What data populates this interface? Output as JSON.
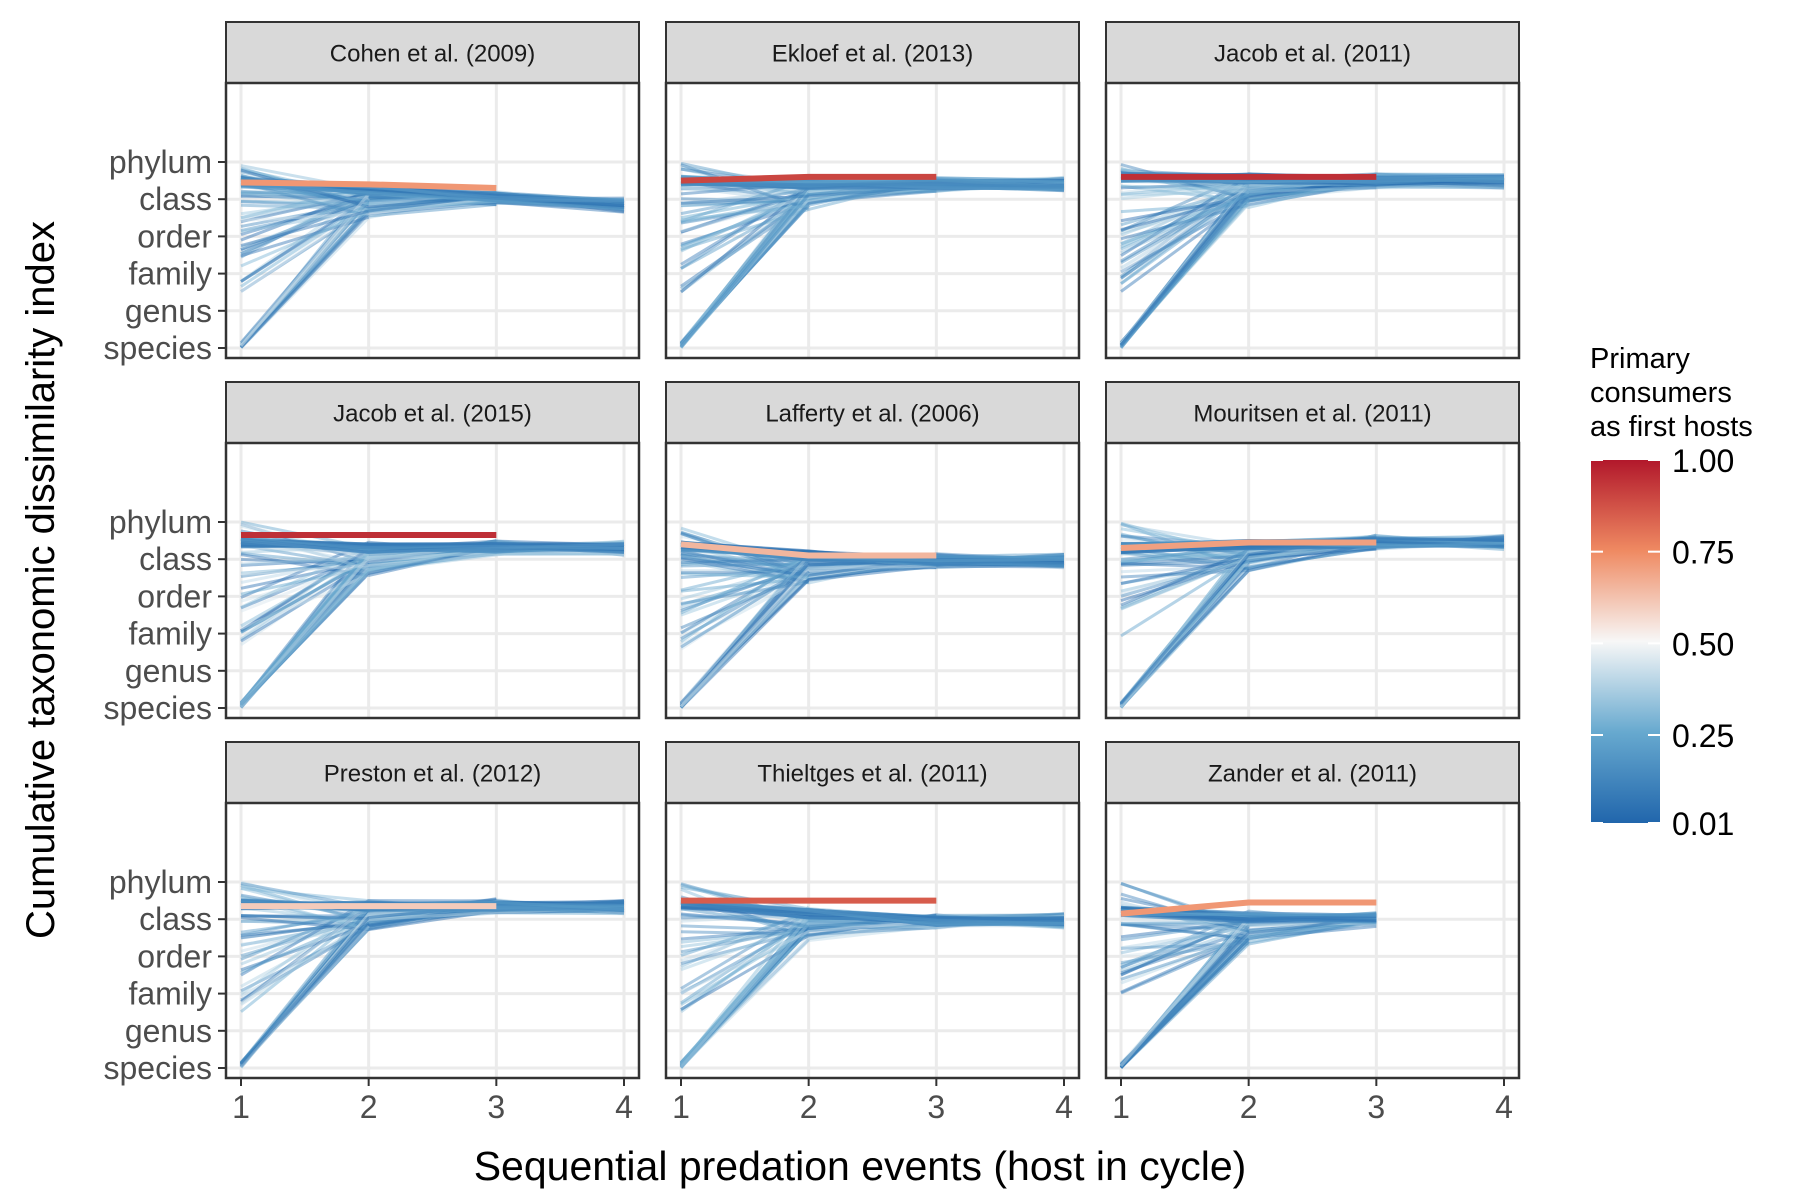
{
  "chart_data": {
    "type": "line",
    "layout": "facet-grid-3x3",
    "xlabel": "Sequential predation events (host in cycle)",
    "ylabel": "Cumulative taxonomic dissimilarity index",
    "x_ticks": [
      "1",
      "2",
      "3",
      "4"
    ],
    "xlim": [
      1,
      4
    ],
    "y_levels": [
      "species",
      "genus",
      "family",
      "order",
      "class",
      "phylum"
    ],
    "ylim": [
      1,
      6
    ],
    "grid": true,
    "legend": {
      "title_lines": [
        "Primary",
        "consumers",
        "as first hosts"
      ],
      "labels": [
        "1.00",
        "0.75",
        "0.50",
        "0.25",
        "0.01"
      ],
      "values": [
        1.0,
        0.75,
        0.5,
        0.25,
        0.01
      ],
      "colors": [
        "#b2182b",
        "#ef8a62",
        "#f7f7f7",
        "#67a9cf",
        "#2166ac"
      ],
      "placement": "right"
    },
    "facets": [
      {
        "title": "Cohen et al. (2009)",
        "n_hosts": 4,
        "steady": [
          5.45,
          5.25,
          5.05,
          4.85
        ],
        "red": [
          5.45,
          5.4,
          5.3
        ],
        "red_share": 0.72
      },
      {
        "title": "Ekloef et al. (2013)",
        "n_hosts": 4,
        "steady": [
          5.5,
          5.4,
          5.4,
          5.4
        ],
        "red": [
          5.5,
          5.6,
          5.6
        ],
        "red_share": 0.9
      },
      {
        "title": "Jacob et al. (2011)",
        "n_hosts": 4,
        "steady": [
          5.6,
          5.55,
          5.5,
          5.5
        ],
        "red": [
          5.6,
          5.6,
          5.6
        ],
        "red_share": 0.95
      },
      {
        "title": "Jacob et al. (2015)",
        "n_hosts": 4,
        "steady": [
          5.45,
          5.3,
          5.3,
          5.3
        ],
        "red": [
          5.65,
          5.65,
          5.65
        ],
        "red_share": 0.95
      },
      {
        "title": "Lafferty et al. (2006)",
        "n_hosts": 4,
        "steady": [
          5.35,
          5.1,
          4.95,
          4.95
        ],
        "red": [
          5.4,
          5.1,
          5.1
        ],
        "red_share": 0.65
      },
      {
        "title": "Mouritsen et al. (2011)",
        "n_hosts": 4,
        "steady": [
          5.3,
          5.4,
          5.45,
          5.45
        ],
        "red": [
          5.3,
          5.45,
          5.45
        ],
        "red_share": 0.7
      },
      {
        "title": "Preston et al. (2012)",
        "n_hosts": 4,
        "steady": [
          5.4,
          5.35,
          5.35,
          5.35
        ],
        "red": [
          5.35,
          5.35,
          5.35
        ],
        "red_share": 0.6
      },
      {
        "title": "Thieltges et al. (2011)",
        "n_hosts": 4,
        "steady": [
          5.4,
          5.15,
          4.95,
          4.95
        ],
        "red": [
          5.5,
          5.5,
          5.5
        ],
        "red_share": 0.85
      },
      {
        "title": "Zander et al. (2011)",
        "n_hosts": 3,
        "steady": [
          5.2,
          5.05,
          5.0
        ],
        "red": [
          5.15,
          5.45,
          5.45
        ],
        "red_share": 0.72
      }
    ]
  }
}
